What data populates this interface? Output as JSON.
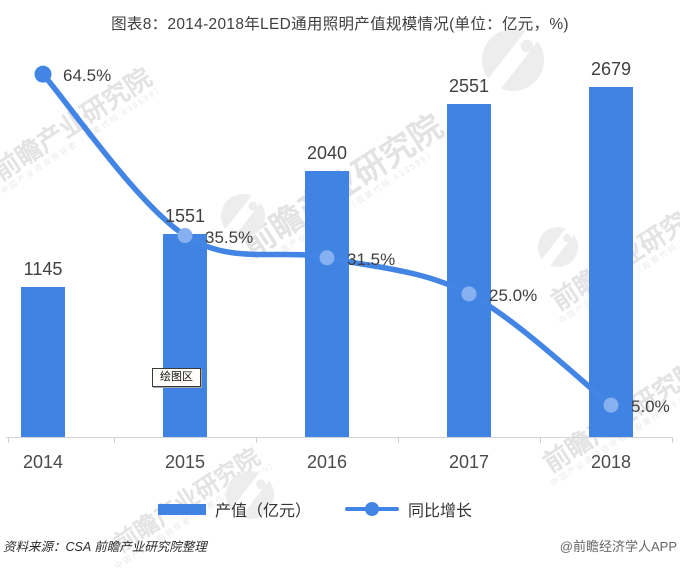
{
  "title": "图表8：2014-2018年LED通用照明产值规模情况(单位：亿元，%)",
  "chart_data": {
    "type": "bar",
    "categories": [
      "2014",
      "2015",
      "2016",
      "2017",
      "2018"
    ],
    "series": [
      {
        "name": "产值（亿元）",
        "type": "bar",
        "axis": "primary",
        "values": [
          1145,
          1551,
          2040,
          2551,
          2679
        ],
        "labels": [
          "1145",
          "1551",
          "2040",
          "2551",
          "2679"
        ],
        "color": "#4183e3"
      },
      {
        "name": "同比增长",
        "type": "line",
        "axis": "secondary",
        "values": [
          64.5,
          35.5,
          31.5,
          25.0,
          5.0
        ],
        "labels": [
          "64.5%",
          "35.5%",
          "31.5%",
          "25.0%",
          "5.0%"
        ],
        "color": "#4285e4"
      }
    ],
    "title": "图表8：2014-2018年LED通用照明产值规模情况(单位：亿元，%)",
    "xlabel": "",
    "ylabel": "",
    "primary_axis": {
      "unit": "亿元",
      "range": [
        0,
        2900
      ],
      "labels_visible": false
    },
    "secondary_axis": {
      "unit": "%",
      "range": [
        0,
        70
      ],
      "labels_visible": false
    },
    "grid": false,
    "legend_position": "bottom"
  },
  "legend": {
    "bar_label": "产值（亿元）",
    "line_label": "同比增长"
  },
  "tooltip": {
    "text": "绘图区"
  },
  "footer": {
    "source": "资料来源：CSA 前瞻产业研究院整理",
    "credit": "@前瞻经济学人APP"
  },
  "watermark": {
    "brand": "前瞻产业研究院",
    "tagline": "中国产业咨询领导者（股票代码:839599）"
  },
  "colors": {
    "bar": "#4183e3",
    "line": "#4285e4",
    "marker_light": "#86b0f0",
    "axis_line": "#d4d4d4",
    "label_text": "#404040",
    "footer_credit": "#666666"
  }
}
